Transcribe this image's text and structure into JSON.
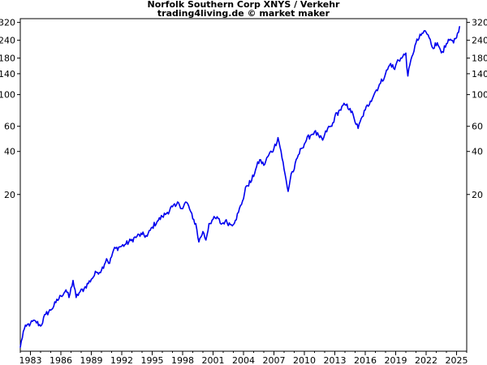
{
  "chart_data": {
    "type": "line",
    "title": "Norfolk Southern Corp XNYS / Verkehr",
    "subtitle": "trading4living.de © market maker",
    "xlabel": "",
    "ylabel": "",
    "y_scale": "log",
    "grid": false,
    "legend": "none",
    "xlim": [
      1982.0,
      2026.0
    ],
    "ylim": [
      1.6,
      340
    ],
    "x_ticks": [
      1983,
      1986,
      1989,
      1992,
      1995,
      1998,
      2001,
      2004,
      2007,
      2010,
      2013,
      2016,
      2019,
      2022,
      2025
    ],
    "y_ticks": [
      20,
      40,
      60,
      100,
      140,
      180,
      240,
      320
    ],
    "line_color": "#0000ee",
    "series": [
      {
        "x": [
          1982.0,
          1982.3,
          1982.6,
          1983.0,
          1983.5,
          1984.0,
          1984.5,
          1985.0,
          1985.5,
          1986.0,
          1986.5,
          1986.8,
          1987.2,
          1987.5,
          1987.8,
          1988.3,
          1989.0,
          1989.5,
          1990.0,
          1990.5,
          1990.8,
          1991.2,
          1991.8,
          1992.3,
          1992.9,
          1993.5,
          1994.0,
          1994.5,
          1995.0,
          1995.5,
          1996.0,
          1996.5,
          1997.0,
          1997.3,
          1997.6,
          1998.0,
          1998.3,
          1998.6,
          1999.0,
          1999.3,
          1999.6,
          2000.0,
          2000.3,
          2000.6,
          2001.0,
          2001.5,
          2001.8,
          2002.2,
          2002.8,
          2003.2,
          2003.5,
          2003.9,
          2004.3,
          2004.8,
          2005.2,
          2005.6,
          2006.0,
          2006.5,
          2007.0,
          2007.4,
          2007.7,
          2008.0,
          2008.4,
          2008.7,
          2009.0,
          2009.3,
          2009.7,
          2010.2,
          2010.6,
          2011.0,
          2011.5,
          2011.8,
          2012.3,
          2012.7,
          2013.0,
          2013.5,
          2014.0,
          2014.5,
          2014.9,
          2015.3,
          2015.7,
          2016.0,
          2016.5,
          2017.0,
          2017.5,
          2018.0,
          2018.5,
          2018.9,
          2019.2,
          2019.6,
          2020.0,
          2020.2,
          2020.6,
          2021.0,
          2021.5,
          2021.9,
          2022.3,
          2022.7,
          2022.9,
          2023.2,
          2023.6,
          2023.9,
          2024.3,
          2024.7,
          2025.0,
          2025.3
        ],
        "y": [
          1.7,
          2.2,
          2.4,
          2.5,
          2.6,
          2.4,
          2.9,
          3.1,
          3.5,
          3.9,
          4.3,
          3.8,
          5.0,
          3.8,
          4.1,
          4.4,
          5.1,
          5.7,
          5.9,
          7.1,
          6.6,
          8.2,
          8.6,
          8.9,
          9.5,
          10.2,
          10.5,
          10.2,
          11.8,
          13.0,
          14.0,
          15.0,
          16.4,
          16.5,
          17.5,
          15.9,
          17.7,
          16.6,
          13.5,
          12.5,
          9.3,
          11.0,
          9.6,
          12.5,
          13.4,
          13.6,
          12.4,
          13.0,
          12.3,
          13.2,
          15.0,
          18.0,
          23.0,
          25.0,
          30.0,
          35.0,
          32.0,
          38.0,
          42.0,
          50.0,
          40.0,
          30.0,
          21.0,
          28.0,
          30.0,
          36.0,
          42.0,
          48.0,
          52.0,
          55.0,
          50.0,
          48.0,
          58.0,
          60.0,
          70.0,
          78.0,
          85.0,
          80.0,
          68.0,
          58.0,
          70.0,
          78.0,
          90.0,
          105.0,
          120.0,
          140.0,
          165.0,
          150.0,
          175.0,
          180.0,
          195.0,
          135.0,
          185.0,
          230.0,
          260.0,
          280.0,
          250.0,
          210.0,
          230.0,
          220.0,
          200.0,
          215.0,
          240.0,
          230.0,
          250.0,
          300.0
        ]
      }
    ]
  }
}
